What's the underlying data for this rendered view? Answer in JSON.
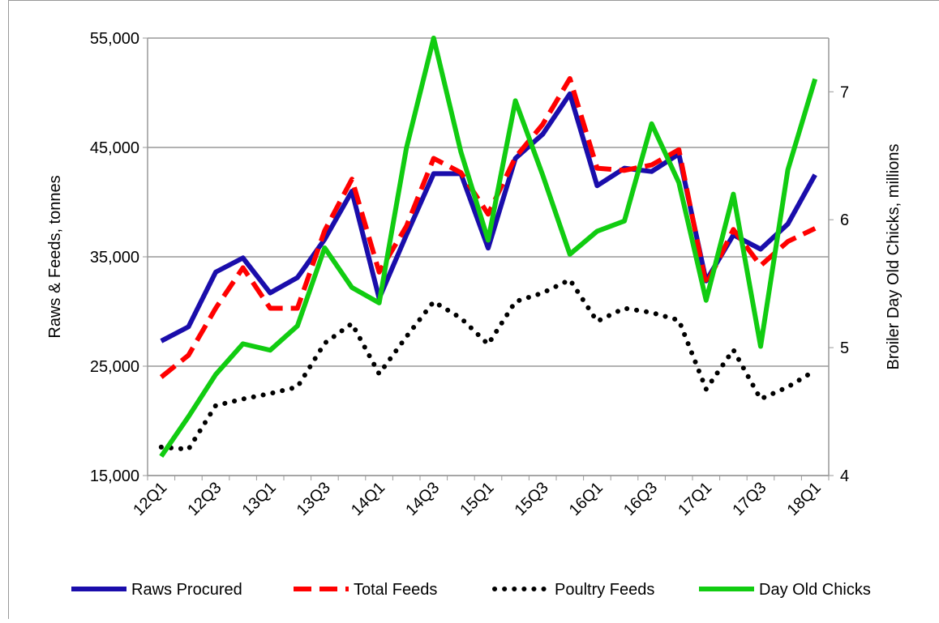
{
  "chart_data": {
    "type": "line",
    "categories": [
      "12Q1",
      null,
      "12Q3",
      null,
      "13Q1",
      null,
      "13Q3",
      null,
      "14Q1",
      null,
      "14Q3",
      null,
      "15Q1",
      null,
      "15Q3",
      null,
      "16Q1",
      null,
      "16Q3",
      null,
      "17Q1",
      null,
      "17Q3",
      null,
      "18Q1"
    ],
    "ylabel": "Raws & Feeds, tonnes",
    "y2label": "Broiler Day Old Chicks, millions",
    "ylim": [
      15000,
      55000
    ],
    "yticks": [
      {
        "value": 15000,
        "label": "15,000"
      },
      {
        "value": 25000,
        "label": "25,000"
      },
      {
        "value": 35000,
        "label": "35,000"
      },
      {
        "value": 45000,
        "label": "45,000"
      },
      {
        "value": 55000,
        "label": "55,000"
      }
    ],
    "y2lim": [
      4,
      7.42
    ],
    "y2ticks": [
      4,
      5,
      6,
      7
    ],
    "grid": true,
    "legend": "bottom",
    "series": [
      {
        "name": "Raws Procured",
        "color": "#1a0dab",
        "style": "solid",
        "values": [
          27300,
          28600,
          33600,
          34900,
          31700,
          33100,
          36600,
          41000,
          31200,
          37000,
          42600,
          42600,
          35800,
          44000,
          46200,
          49900,
          41500,
          43100,
          42800,
          44400,
          32800,
          37000,
          35700,
          38000,
          42500
        ]
      },
      {
        "name": "Total Feeds",
        "color": "#ff0000",
        "style": "dashed",
        "values": [
          24000,
          26000,
          30300,
          34000,
          30300,
          30300,
          37400,
          42100,
          33600,
          37800,
          44000,
          42700,
          38900,
          44100,
          47100,
          51300,
          43100,
          42900,
          43400,
          44800,
          32400,
          37500,
          34200,
          36400,
          37600
        ]
      },
      {
        "name": "Poultry Feeds",
        "color": "#000000",
        "style": "dotted",
        "values": [
          17600,
          17400,
          21400,
          22000,
          22500,
          23100,
          27100,
          28900,
          24300,
          27700,
          30900,
          29400,
          27000,
          30900,
          31700,
          32900,
          29100,
          30300,
          29900,
          29200,
          22900,
          26500,
          22000,
          23100,
          24600
        ]
      },
      {
        "name": "Day Old Chicks",
        "color": "#11cc11",
        "style": "solid",
        "axis": "y2",
        "values": [
          4.15,
          4.46,
          4.79,
          5.03,
          4.98,
          5.17,
          5.78,
          5.47,
          5.35,
          6.56,
          7.42,
          6.53,
          5.84,
          6.93,
          6.35,
          5.73,
          5.91,
          5.99,
          6.75,
          6.29,
          5.37,
          6.2,
          5.01,
          6.39,
          7.1
        ]
      }
    ]
  }
}
